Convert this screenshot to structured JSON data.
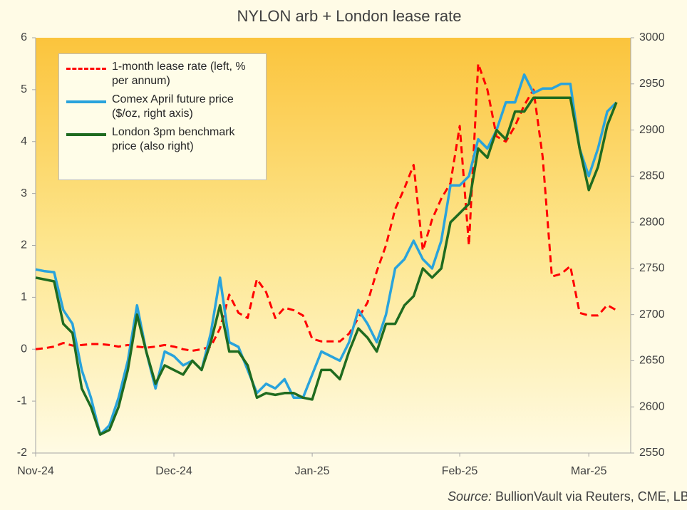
{
  "chart_data": {
    "type": "line",
    "title": "NYLON arb + London lease rate",
    "source_label": "Source:",
    "source": "BullionVault via Reuters, CME, LBMA",
    "categories": [
      "Nov-24",
      null,
      null,
      null,
      null,
      null,
      null,
      null,
      null,
      null,
      null,
      null,
      null,
      null,
      null,
      "Dec-24",
      null,
      null,
      null,
      null,
      null,
      null,
      null,
      null,
      null,
      null,
      null,
      null,
      null,
      null,
      "Jan-25",
      null,
      null,
      null,
      null,
      null,
      null,
      null,
      null,
      null,
      null,
      null,
      null,
      null,
      null,
      null,
      "Feb-25",
      null,
      null,
      null,
      null,
      null,
      null,
      null,
      null,
      null,
      null,
      null,
      null,
      null,
      "Mar-25",
      null,
      null,
      null
    ],
    "ylim": [
      -2,
      6
    ],
    "yticks": [
      -2,
      -1,
      0,
      1,
      2,
      3,
      4,
      5,
      6
    ],
    "y2lim": [
      2550,
      3000
    ],
    "y2ticks": [
      2550,
      2600,
      2650,
      2700,
      2750,
      2800,
      2850,
      2900,
      2950,
      3000
    ],
    "legend": "upper left",
    "series": [
      {
        "name": "1-month lease rate (left, % per annum)",
        "color": "#ff0000",
        "linestyle": "dashed",
        "axis": "y",
        "values": [
          0.0,
          0.02,
          0.05,
          0.12,
          0.07,
          0.08,
          0.1,
          0.1,
          0.08,
          0.05,
          0.08,
          0.05,
          0.03,
          0.05,
          0.08,
          0.05,
          0.0,
          -0.03,
          0.0,
          0.05,
          0.4,
          1.05,
          0.7,
          0.6,
          1.35,
          1.1,
          0.6,
          0.8,
          0.75,
          0.65,
          0.2,
          0.15,
          0.15,
          0.15,
          0.3,
          0.6,
          0.9,
          1.5,
          2.0,
          2.7,
          3.1,
          3.55,
          1.9,
          2.5,
          2.9,
          3.2,
          4.3,
          2.0,
          5.5,
          5.0,
          4.1,
          4.0,
          4.3,
          4.7,
          5.0,
          3.7,
          1.4,
          1.45,
          1.6,
          0.7,
          0.65,
          0.65,
          0.85,
          0.75
        ]
      },
      {
        "name": "Comex April future price ($/oz, right axis)",
        "color": "#29a3dc",
        "linestyle": "solid",
        "axis": "y2",
        "values": [
          2749,
          2747,
          2746,
          2705,
          2690,
          2640,
          2610,
          2570,
          2580,
          2610,
          2650,
          2710,
          2660,
          2620,
          2660,
          2655,
          2645,
          2650,
          2640,
          2680,
          2740,
          2670,
          2665,
          2640,
          2615,
          2625,
          2620,
          2630,
          2610,
          2610,
          2635,
          2660,
          2655,
          2650,
          2670,
          2705,
          2690,
          2670,
          2700,
          2750,
          2760,
          2780,
          2760,
          2750,
          2780,
          2840,
          2840,
          2850,
          2890,
          2880,
          2900,
          2930,
          2930,
          2960,
          2940,
          2945,
          2945,
          2950,
          2950,
          2880,
          2850,
          2880,
          2920,
          2930
        ]
      },
      {
        "name": "London 3pm benchmark price (also right)",
        "color": "#1f6b1f",
        "linestyle": "solid",
        "axis": "y2",
        "values": [
          2740,
          2738,
          2736,
          2690,
          2680,
          2620,
          2600,
          2570,
          2575,
          2600,
          2640,
          2700,
          2660,
          2625,
          2645,
          2640,
          2635,
          2650,
          2640,
          2670,
          2710,
          2660,
          2660,
          2645,
          2610,
          2615,
          2613,
          2615,
          2615,
          2610,
          2608,
          2640,
          2640,
          2630,
          2660,
          2685,
          2675,
          2660,
          2690,
          2690,
          2710,
          2720,
          2750,
          2740,
          2750,
          2800,
          2810,
          2820,
          2880,
          2870,
          2900,
          2890,
          2920,
          2920,
          2935,
          2935,
          2935,
          2935,
          2935,
          2880,
          2835,
          2860,
          2905,
          2930
        ]
      }
    ]
  }
}
